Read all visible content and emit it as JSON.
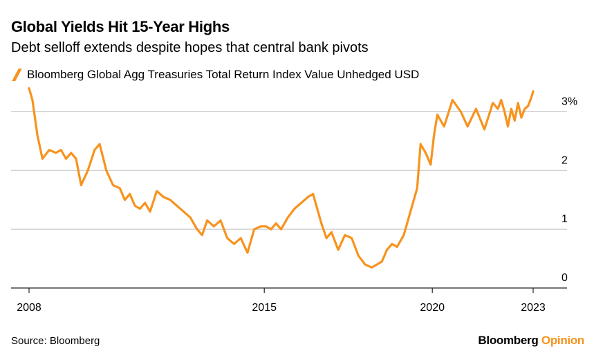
{
  "header": {
    "title": "Global Yields Hit 15-Year Highs",
    "subtitle": "Debt selloff extends despite hopes that central bank pivots"
  },
  "footer": {
    "source": "Source: Bloomberg",
    "brand_primary": "Bloomberg",
    "brand_secondary": "Opinion"
  },
  "colors": {
    "series": "#F7931E",
    "grid": "#bdbdbd",
    "axis": "#222222"
  },
  "chart_data": {
    "type": "line",
    "title": "Global Yields Hit 15-Year Highs",
    "subtitle": "Debt selloff extends despite hopes that central bank pivots",
    "xlabel": "",
    "ylabel": "",
    "xlim": [
      2007.95,
      2024.2
    ],
    "ylim": [
      0,
      3.3
    ],
    "x_ticks": [
      {
        "value": 2008,
        "label": "2008"
      },
      {
        "value": 2015,
        "label": "2015"
      },
      {
        "value": 2020,
        "label": "2020"
      },
      {
        "value": 2023,
        "label": "2023"
      }
    ],
    "y_ticks": [
      {
        "value": 0,
        "label": "0"
      },
      {
        "value": 1,
        "label": "1"
      },
      {
        "value": 2,
        "label": "2"
      },
      {
        "value": 3,
        "label": "3%"
      }
    ],
    "grid": true,
    "legend_position": "top-left",
    "series": [
      {
        "name": "Bloomberg Global Agg Treasuries Total Return Index Value Unhedged USD",
        "x": [
          2008.0,
          2008.1,
          2008.25,
          2008.4,
          2008.6,
          2008.8,
          2008.95,
          2009.1,
          2009.25,
          2009.4,
          2009.55,
          2009.75,
          2009.95,
          2010.1,
          2010.3,
          2010.5,
          2010.7,
          2010.85,
          2011.0,
          2011.15,
          2011.3,
          2011.45,
          2011.6,
          2011.8,
          2012.0,
          2012.2,
          2012.4,
          2012.6,
          2012.8,
          2013.0,
          2013.15,
          2013.3,
          2013.5,
          2013.7,
          2013.9,
          2014.1,
          2014.3,
          2014.5,
          2014.7,
          2014.9,
          2015.05,
          2015.2,
          2015.35,
          2015.5,
          2015.7,
          2015.9,
          2016.1,
          2016.3,
          2016.45,
          2016.55,
          2016.7,
          2016.85,
          2017.0,
          2017.2,
          2017.4,
          2017.6,
          2017.8,
          2018.0,
          2018.2,
          2018.35,
          2018.5,
          2018.65,
          2018.8,
          2018.95,
          2019.15,
          2019.35,
          2019.55,
          2019.65,
          2019.8,
          2019.95,
          2020.05,
          2020.15,
          2020.35,
          2020.6,
          2020.85,
          2021.05,
          2021.3,
          2021.55,
          2021.8,
          2021.95,
          2022.05,
          2022.15,
          2022.25,
          2022.35,
          2022.45,
          2022.55,
          2022.65,
          2022.75,
          2022.85,
          2022.95,
          2023.0
        ],
        "values": [
          3.4,
          3.2,
          2.6,
          2.2,
          2.35,
          2.3,
          2.35,
          2.2,
          2.3,
          2.2,
          1.75,
          2.0,
          2.35,
          2.45,
          2.0,
          1.75,
          1.7,
          1.5,
          1.6,
          1.4,
          1.35,
          1.45,
          1.3,
          1.65,
          1.55,
          1.5,
          1.4,
          1.3,
          1.2,
          1.0,
          0.9,
          1.15,
          1.05,
          1.15,
          0.85,
          0.75,
          0.85,
          0.6,
          1.0,
          1.05,
          1.05,
          1.0,
          1.1,
          1.0,
          1.2,
          1.35,
          1.45,
          1.55,
          1.6,
          1.4,
          1.1,
          0.85,
          0.95,
          0.65,
          0.9,
          0.85,
          0.55,
          0.4,
          0.35,
          0.4,
          0.45,
          0.65,
          0.75,
          0.7,
          0.9,
          1.3,
          1.7,
          2.45,
          2.3,
          2.1,
          2.6,
          2.95,
          2.75,
          3.2,
          3.0,
          2.75,
          3.05,
          2.7,
          3.15,
          3.05,
          3.2,
          3.0,
          2.75,
          3.05,
          2.85,
          3.15,
          2.9,
          3.05,
          3.1,
          3.25,
          3.35
        ]
      }
    ]
  }
}
